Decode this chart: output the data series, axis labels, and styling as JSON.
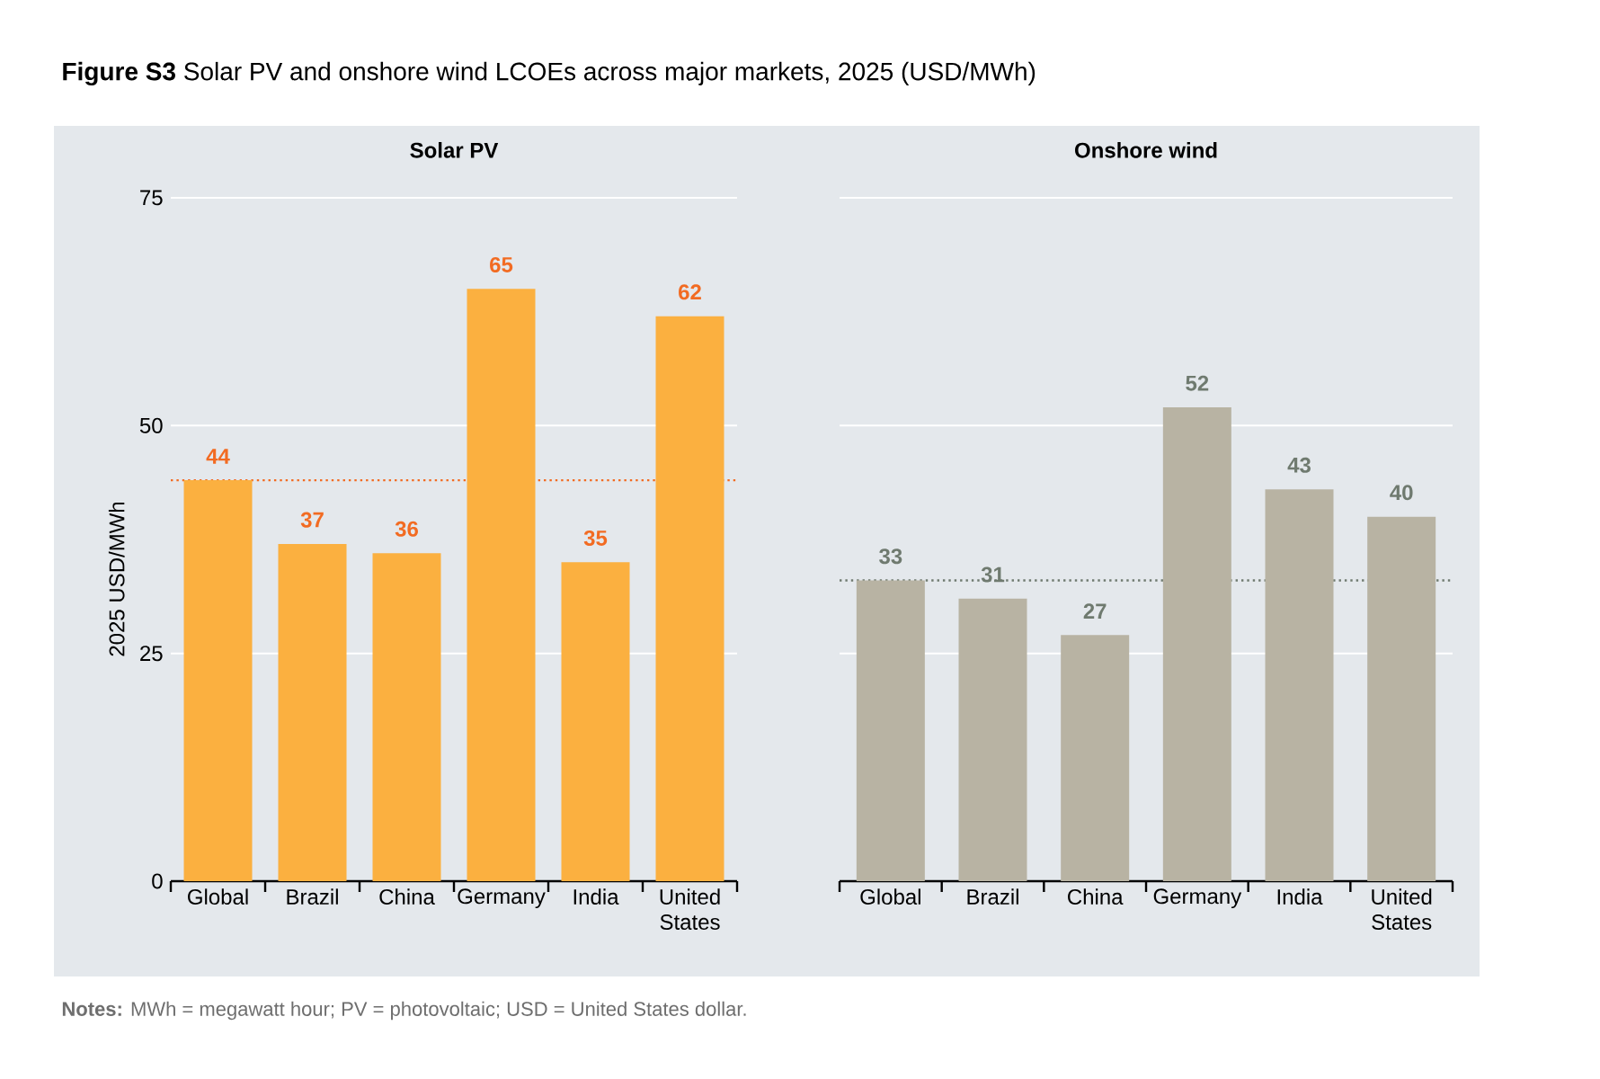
{
  "chart_data": [
    {
      "type": "bar",
      "title": "**Figure S3** Solar PV and onshore wind LCOEs across major markets, 2025 (USD/MWh)",
      "subtitle": "Solar PV",
      "ylabel": "2025 USD/MWh",
      "categories": [
        "Global",
        "Brazil",
        "China",
        "Germany",
        "India",
        "United States"
      ],
      "values": [
        44,
        37,
        36,
        65,
        35,
        62
      ],
      "color": "#fbb040",
      "data_labels": true,
      "ylim": [
        0,
        75
      ],
      "yticks": [
        0,
        25,
        50,
        75
      ],
      "grid": "y",
      "ref_lines": [
        {
          "axis": "y",
          "value": 44,
          "color": "#f26b22",
          "line_style": "dotted"
        }
      ],
      "annotations": [
        "**Notes:** MWh = megawatt hour; PV = photovoltaic; USD = United States dollar."
      ]
    },
    {
      "type": "bar",
      "title": "Onshore wind",
      "categories": [
        "Global",
        "Brazil",
        "China",
        "Germany",
        "India",
        "United States"
      ],
      "values": [
        33,
        31,
        27,
        52,
        43,
        40
      ],
      "color": "#b8b3a3",
      "data_labels": true,
      "ylim": [
        0,
        75
      ],
      "yticks": [
        0,
        25,
        50,
        75
      ],
      "grid": "y",
      "tick_labels": "x",
      "ref_lines": [
        {
          "axis": "y",
          "value": 33,
          "color": "#6f7a6f",
          "line_style": "dotted"
        }
      ]
    }
  ]
}
